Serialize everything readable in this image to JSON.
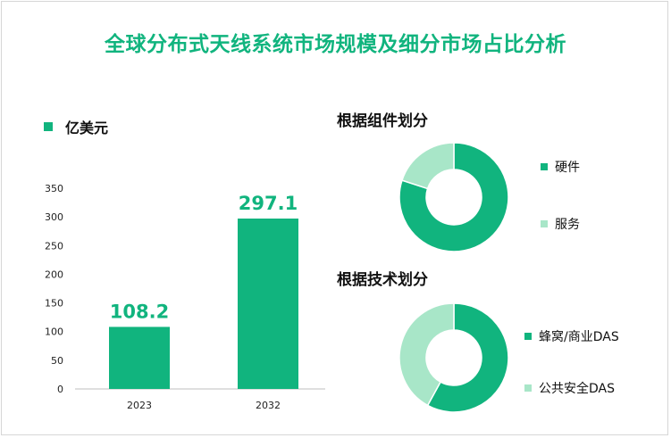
{
  "title": "全球分布式天线系统市场规模及细分市场占比分析",
  "chart_data": [
    {
      "type": "bar",
      "legend": "亿美元",
      "categories": [
        "2023",
        "2032"
      ],
      "values": [
        108.2,
        297.1
      ],
      "data_labels": [
        "108.2",
        "297.1"
      ],
      "ylim": [
        0,
        350
      ],
      "yticks": [
        0,
        50,
        100,
        150,
        200,
        250,
        300,
        350
      ],
      "color": "#11b47e",
      "grid": false
    },
    {
      "type": "pie",
      "donut": true,
      "title": "根据组件划分",
      "labels": [
        "硬件",
        "服务"
      ],
      "values": [
        80,
        20
      ],
      "colors": [
        "#11b47e",
        "#a8e6c8"
      ]
    },
    {
      "type": "pie",
      "donut": true,
      "title": "根据技术划分",
      "labels": [
        "蜂窝/商业DAS",
        "公共安全DAS"
      ],
      "values": [
        58,
        42
      ],
      "colors": [
        "#11b47e",
        "#a8e6c8"
      ]
    }
  ]
}
